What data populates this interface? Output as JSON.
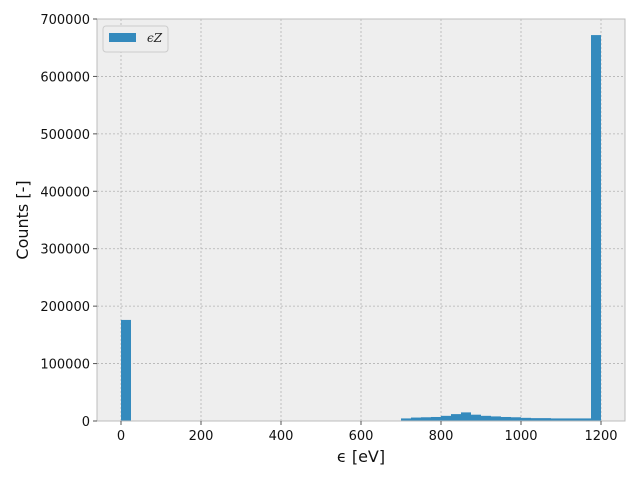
{
  "chart_data": {
    "type": "bar",
    "title": "",
    "xlabel": "ϵ [eV]",
    "ylabel": "Counts [-]",
    "xlim": [
      -60,
      1260
    ],
    "ylim": [
      0,
      700000
    ],
    "x_ticks": [
      0,
      200,
      400,
      600,
      800,
      1000,
      1200
    ],
    "y_ticks": [
      0,
      100000,
      200000,
      300000,
      400000,
      500000,
      600000,
      700000
    ],
    "grid": true,
    "legend_position": "top-left",
    "color": "#348abd",
    "series": [
      {
        "name": "ϵZ",
        "bin_width": 25,
        "bins": [
          {
            "x0": 0,
            "x1": 25,
            "value": 176000
          },
          {
            "x0": 700,
            "x1": 725,
            "value": 4500
          },
          {
            "x0": 725,
            "x1": 750,
            "value": 6000
          },
          {
            "x0": 750,
            "x1": 775,
            "value": 6500
          },
          {
            "x0": 775,
            "x1": 800,
            "value": 7000
          },
          {
            "x0": 800,
            "x1": 825,
            "value": 9000
          },
          {
            "x0": 825,
            "x1": 850,
            "value": 12000
          },
          {
            "x0": 850,
            "x1": 875,
            "value": 15000
          },
          {
            "x0": 875,
            "x1": 900,
            "value": 11000
          },
          {
            "x0": 900,
            "x1": 925,
            "value": 9000
          },
          {
            "x0": 925,
            "x1": 950,
            "value": 8000
          },
          {
            "x0": 950,
            "x1": 975,
            "value": 7000
          },
          {
            "x0": 975,
            "x1": 1000,
            "value": 6500
          },
          {
            "x0": 1000,
            "x1": 1025,
            "value": 5500
          },
          {
            "x0": 1025,
            "x1": 1050,
            "value": 5000
          },
          {
            "x0": 1050,
            "x1": 1075,
            "value": 5000
          },
          {
            "x0": 1075,
            "x1": 1100,
            "value": 4500
          },
          {
            "x0": 1100,
            "x1": 1125,
            "value": 4500
          },
          {
            "x0": 1125,
            "x1": 1150,
            "value": 4500
          },
          {
            "x0": 1150,
            "x1": 1175,
            "value": 4500
          },
          {
            "x0": 1175,
            "x1": 1200,
            "value": 672000
          }
        ]
      }
    ]
  }
}
